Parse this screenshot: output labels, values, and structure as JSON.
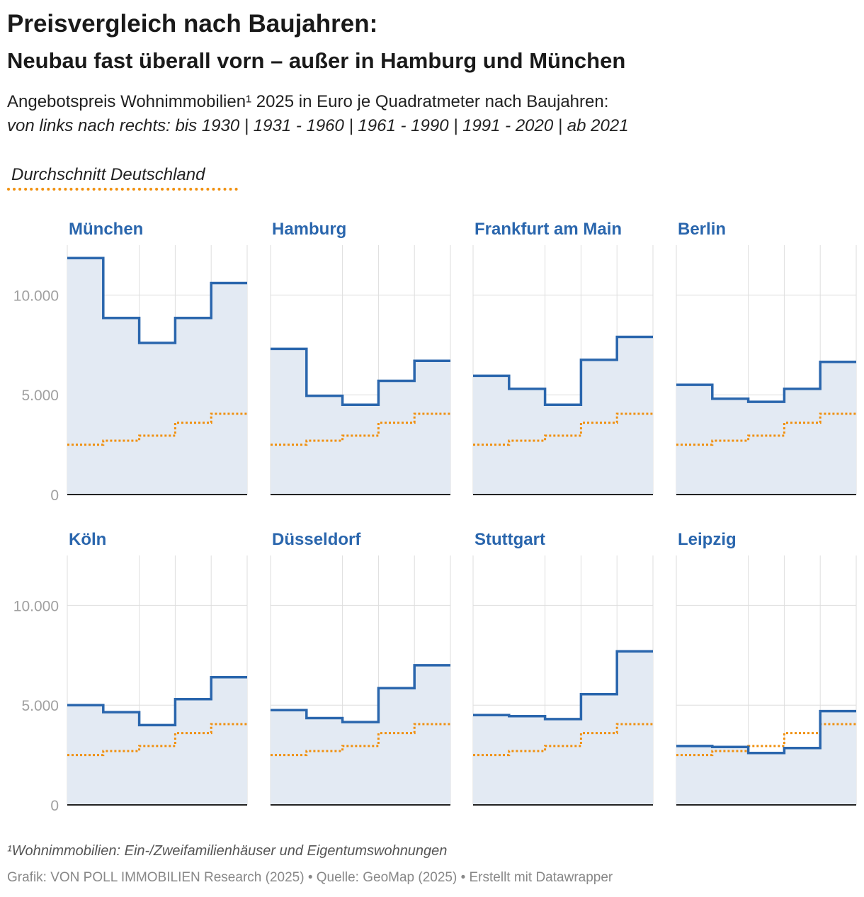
{
  "title": "Preisvergleich nach Baujahren:",
  "subtitle": "Neubau fast überall vorn – außer in Hamburg und München",
  "description": "Angebotspreis Wohnimmobilien¹ 2025 in Euro je Quadratmeter nach Baujahren:",
  "description_italic": "von links nach rechts: bis 1930 | 1931 - 1960 | 1961 - 1990 | 1991 - 2020 | ab 2021",
  "legend": {
    "label": "Durchschnitt Deutschland"
  },
  "footnote": "¹Wohnimmobilien: Ein-/Zweifamilienhäuser und Eigentumswohnungen",
  "source": "Grafik: VON POLL IMMOBILIEN Research (2025) • Quelle: GeoMap (2025) • Erstellt mit Datawrapper",
  "colors": {
    "city_line": "#2a66ad",
    "city_area": "#e3eaf3",
    "average_line": "#f0900f",
    "title_blue": "#2a66ad",
    "grid": "#dedede",
    "axis_text": "#a0a0a0"
  },
  "chart_data": {
    "type": "area",
    "step": true,
    "categories": [
      "bis 1930",
      "1931 - 1960",
      "1961 - 1990",
      "1991 - 2020",
      "ab 2021"
    ],
    "ylim": [
      0,
      12500
    ],
    "yticks": [
      0,
      5000,
      10000
    ],
    "ytick_labels": [
      "0",
      "5.000",
      "10.000"
    ],
    "average": {
      "name": "Durchschnitt Deutschland",
      "values": [
        2500,
        2700,
        2950,
        3600,
        4050
      ]
    },
    "panels": [
      {
        "name": "München",
        "values": [
          11850,
          8850,
          7600,
          8850,
          10600
        ]
      },
      {
        "name": "Hamburg",
        "values": [
          7300,
          4950,
          4500,
          5700,
          6700
        ]
      },
      {
        "name": "Frankfurt am Main",
        "values": [
          5950,
          5300,
          4500,
          6750,
          7900
        ]
      },
      {
        "name": "Berlin",
        "values": [
          5500,
          4800,
          4650,
          5300,
          6650
        ]
      },
      {
        "name": "Köln",
        "values": [
          5000,
          4650,
          4000,
          5300,
          6400
        ]
      },
      {
        "name": "Düsseldorf",
        "values": [
          4750,
          4350,
          4150,
          5850,
          7000
        ]
      },
      {
        "name": "Stuttgart",
        "values": [
          4500,
          4450,
          4300,
          5550,
          7700
        ]
      },
      {
        "name": "Leipzig",
        "values": [
          2950,
          2900,
          2600,
          2850,
          4700
        ]
      }
    ]
  }
}
